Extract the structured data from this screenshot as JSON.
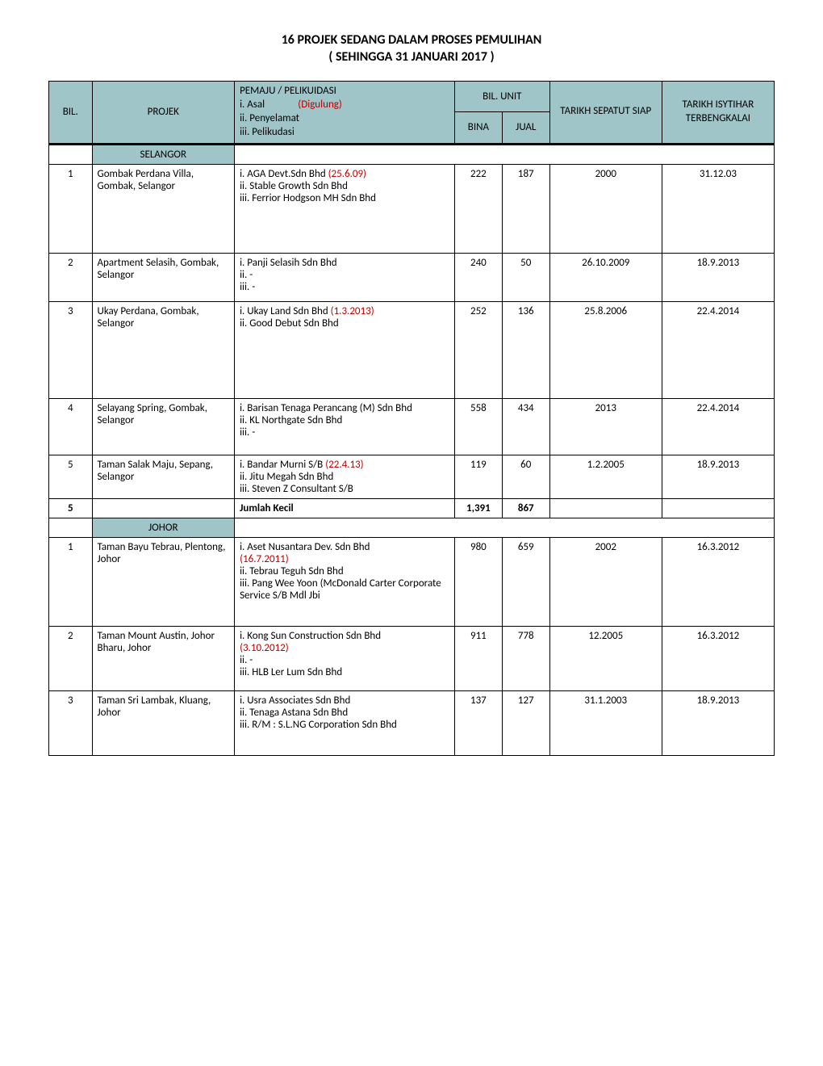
{
  "title_line1": "16 PROJEK SEDANG DALAM PROSES PEMULIHAN",
  "title_line2": "( SEHINGGA 31 JANUARI 2017 )",
  "headers": {
    "bil": "BIL.",
    "projek": "PROJEK",
    "pemaju_title": "PEMAJU / PELIKUIDASI",
    "pemaju_i": "i. Asal",
    "pemaju_i_red": "(Digulung)",
    "pemaju_ii": "ii. Penyelamat",
    "pemaju_iii": "iii. Pelikudasi",
    "bil_unit": "BIL. UNIT",
    "bina": "BINA",
    "jual": "JUAL",
    "tarikh_siap": "TARIKH SEPATUT SIAP",
    "tarikh_terbengkalai": "TARIKH  ISYTIHAR TERBENGKALAI"
  },
  "regions": [
    {
      "name": "SELANGOR",
      "rows": [
        {
          "bil": "1",
          "projek": "Gombak Perdana Villa, Gombak, Selangor",
          "pem_parts": [
            {
              "t": "i. AGA Devt.Sdn Bhd "
            },
            {
              "t": "(25.6.09)",
              "red": true
            },
            {
              "br": true
            },
            {
              "t": "ii. Stable Growth Sdn Bhd"
            },
            {
              "br": true
            },
            {
              "t": "iii. Ferrior Hodgson MH Sdn Bhd"
            }
          ],
          "bina": "222",
          "jual": "187",
          "siap": "2000",
          "terb": "31.12.03",
          "hclass": "tall1"
        },
        {
          "bil": "2",
          "projek": "Apartment Selasih, Gombak, Selangor",
          "pem_parts": [
            {
              "t": "i. Panji Selasih Sdn Bhd"
            },
            {
              "br": true
            },
            {
              "t": "ii. -"
            },
            {
              "br": true
            },
            {
              "t": "iii. -"
            }
          ],
          "bina": "240",
          "jual": "50",
          "siap": "26.10.2009",
          "terb": "18.9.2013",
          "hclass": "tall2"
        },
        {
          "bil": "3",
          "projek": "Ukay Perdana, Gombak, Selangor",
          "pem_parts": [
            {
              "t": "i. Ukay Land Sdn Bhd "
            },
            {
              "t": "(1.3.2013)",
              "red": true
            },
            {
              "br": true
            },
            {
              "t": "ii. Good Debut Sdn Bhd"
            }
          ],
          "bina": "252",
          "jual": "136",
          "siap": "25.8.2006",
          "terb": "22.4.2014",
          "hclass": "tall3"
        },
        {
          "bil": "4",
          "projek": "Selayang Spring, Gombak, Selangor",
          "pem_parts": [
            {
              "t": "i. Barisan Tenaga Perancang (M) Sdn Bhd"
            },
            {
              "br": true
            },
            {
              "t": "ii. KL Northgate Sdn Bhd"
            },
            {
              "br": true
            },
            {
              "t": "iii. -"
            }
          ],
          "bina": "558",
          "jual": "434",
          "siap": "2013",
          "terb": "22.4.2014",
          "hclass": "tall4"
        },
        {
          "bil": "5",
          "projek": "Taman Salak Maju, Sepang, Selangor",
          "pem_parts": [
            {
              "t": "i. Bandar Murni S/B "
            },
            {
              "t": "(22.4.13)",
              "red": true
            },
            {
              "br": true
            },
            {
              "t": "ii. Jitu Megah Sdn Bhd"
            },
            {
              "br": true
            },
            {
              "t": "iii. Steven Z Consultant S/B"
            }
          ],
          "bina": "119",
          "jual": "60",
          "siap": "1.2.2005",
          "terb": "18.9.2013",
          "hclass": "tall5"
        }
      ],
      "subtotal": {
        "bil": "5",
        "label": "Jumlah Kecil",
        "bina": "1,391",
        "jual": "867"
      }
    },
    {
      "name": "JOHOR",
      "rows": [
        {
          "bil": "1",
          "projek": "Taman Bayu Tebrau, Plentong, Johor",
          "pem_parts": [
            {
              "t": "i. Aset Nusantara Dev. Sdn Bhd"
            },
            {
              "br": true
            },
            {
              "t": "(16.7.2011)",
              "red": true
            },
            {
              "br": true
            },
            {
              "t": "ii. Tebrau Teguh Sdn Bhd"
            },
            {
              "br": true
            },
            {
              "t": "iii. Pang Wee Yoon (McDonald Carter Corporate Service S/B Mdl Jbi"
            }
          ],
          "bina": "980",
          "jual": "659",
          "siap": "2002",
          "terb": "16.3.2012",
          "hclass": "tall6"
        },
        {
          "bil": "2",
          "projek": "Taman Mount Austin, Johor Bharu, Johor",
          "pem_parts": [
            {
              "t": "i. Kong Sun Construction Sdn Bhd"
            },
            {
              "br": true
            },
            {
              "t": "(3.10.2012)",
              "red": true
            },
            {
              "br": true
            },
            {
              "t": "ii. -"
            },
            {
              "br": true
            },
            {
              "t": "iii. HLB Ler Lum Sdn Bhd"
            }
          ],
          "bina": "911",
          "jual": "778",
          "siap": "12.2005",
          "terb": "16.3.2012",
          "hclass": "tall7"
        },
        {
          "bil": "3",
          "projek": "Taman Sri Lambak, Kluang, Johor",
          "pem_parts": [
            {
              "t": "i. Usra Associates Sdn Bhd"
            },
            {
              "br": true
            },
            {
              "t": "ii. Tenaga Astana Sdn Bhd"
            },
            {
              "br": true
            },
            {
              "t": "iii. R/M : S.L.NG Corporation Sdn Bhd"
            }
          ],
          "bina": "137",
          "jual": "127",
          "siap": "31.1.2003",
          "terb": "18.9.2013",
          "hclass": "tall8"
        }
      ]
    }
  ],
  "colors": {
    "header_bg": "#9fc5c9",
    "red": "#c00000",
    "border": "#000000"
  }
}
